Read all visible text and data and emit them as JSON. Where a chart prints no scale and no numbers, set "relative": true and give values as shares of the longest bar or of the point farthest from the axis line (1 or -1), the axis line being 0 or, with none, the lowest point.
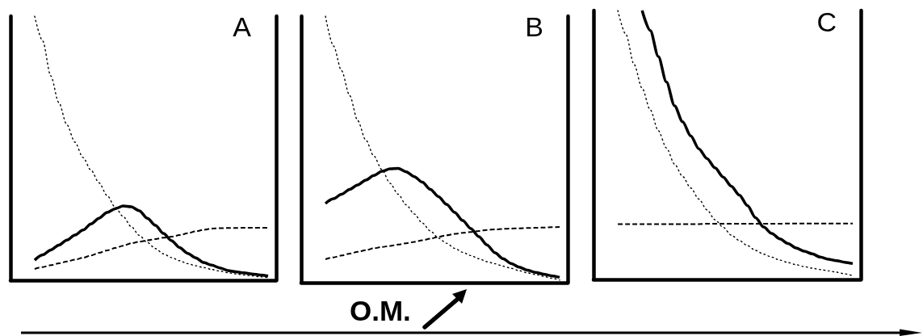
{
  "chart_data": [
    {
      "type": "line",
      "title": "A",
      "relative": true,
      "categories": [
        null,
        null,
        null,
        null,
        null,
        null,
        null,
        null,
        null,
        null,
        null,
        null,
        null,
        null,
        null,
        null,
        null,
        null,
        null,
        null,
        null,
        null,
        null,
        null,
        null,
        null,
        null,
        null,
        null,
        null,
        null,
        null,
        null,
        null
      ],
      "series": [
        {
          "color": "#000000",
          "line_style": "solid",
          "values": [
            null,
            null,
            null,
            0.076,
            0.096,
            0.115,
            0.133,
            0.152,
            0.171,
            0.19,
            0.213,
            0.235,
            0.257,
            0.271,
            0.281,
            0.278,
            0.263,
            0.235,
            0.208,
            0.177,
            0.15,
            0.124,
            0.102,
            0.085,
            0.067,
            0.057,
            0.047,
            0.037,
            0.032,
            0.028,
            0.024,
            0.02,
            0.016,
            null
          ]
        },
        {
          "color": "#000000",
          "line_style": "dashed",
          "values": [
            null,
            null,
            null,
            0.043,
            0.05,
            0.057,
            0.064,
            0.071,
            0.078,
            0.085,
            0.094,
            0.104,
            0.113,
            0.122,
            0.131,
            0.14,
            0.146,
            0.151,
            0.156,
            0.161,
            0.165,
            0.171,
            0.178,
            0.185,
            0.191,
            0.196,
            0.197,
            0.198,
            0.198,
            0.199,
            0.199,
            0.199,
            0.199,
            null
          ]
        },
        {
          "color": "#000000",
          "line_style": "dotted",
          "values": [
            null,
            null,
            null,
            1.0,
            0.906,
            0.774,
            0.673,
            0.589,
            0.523,
            0.465,
            0.417,
            0.369,
            0.321,
            0.277,
            0.241,
            0.203,
            0.17,
            0.143,
            0.12,
            0.1,
            0.086,
            0.074,
            0.063,
            0.055,
            0.048,
            0.041,
            0.035,
            0.029,
            0.024,
            0.02,
            0.017,
            0.013,
            0.01,
            null
          ]
        }
      ]
    },
    {
      "type": "line",
      "title": "B",
      "relative": true,
      "annotations": [
        "O.M."
      ],
      "categories": [
        null,
        null,
        null,
        null,
        null,
        null,
        null,
        null,
        null,
        null,
        null,
        null,
        null,
        null,
        null,
        null,
        null,
        null,
        null,
        null,
        null,
        null,
        null,
        null,
        null,
        null,
        null,
        null,
        null,
        null,
        null,
        null,
        null,
        null
      ],
      "series": [
        {
          "color": "#000000",
          "line_style": "solid",
          "values": [
            null,
            null,
            null,
            0.297,
            0.315,
            0.332,
            0.35,
            0.367,
            0.385,
            0.402,
            0.418,
            0.427,
            0.429,
            0.416,
            0.398,
            0.377,
            0.35,
            0.323,
            0.294,
            0.264,
            0.233,
            0.203,
            0.173,
            0.142,
            0.112,
            0.09,
            0.072,
            0.058,
            0.047,
            0.039,
            0.032,
            0.026,
            0.02,
            null
          ]
        },
        {
          "color": "#000000",
          "line_style": "dashed",
          "values": [
            null,
            null,
            null,
            0.088,
            0.095,
            0.102,
            0.109,
            0.116,
            0.122,
            0.129,
            0.134,
            0.138,
            0.143,
            0.148,
            0.153,
            0.159,
            0.165,
            0.172,
            0.178,
            0.183,
            0.187,
            0.19,
            0.194,
            0.198,
            0.2,
            0.202,
            0.203,
            0.204,
            0.205,
            0.206,
            0.207,
            0.208,
            0.209,
            null
          ]
        },
        {
          "color": "#000000",
          "line_style": "dotted",
          "values": [
            null,
            null,
            null,
            1.0,
            0.888,
            0.795,
            0.702,
            0.608,
            0.535,
            0.475,
            0.424,
            0.373,
            0.332,
            0.292,
            0.258,
            0.224,
            0.194,
            0.167,
            0.148,
            0.129,
            0.114,
            0.102,
            0.09,
            0.079,
            0.071,
            0.062,
            0.054,
            0.045,
            0.037,
            0.031,
            0.024,
            0.017,
            0.01,
            null
          ]
        }
      ]
    },
    {
      "type": "line",
      "title": "C",
      "relative": true,
      "categories": [
        null,
        null,
        null,
        null,
        null,
        null,
        null,
        null,
        null,
        null,
        null,
        null,
        null,
        null,
        null,
        null,
        null,
        null,
        null,
        null,
        null,
        null,
        null,
        null,
        null,
        null,
        null,
        null,
        null,
        null,
        null,
        null,
        null,
        null
      ],
      "series": [
        {
          "color": "#000000",
          "line_style": "solid",
          "values": [
            null,
            null,
            null,
            null,
            null,
            null,
            1.0,
            0.926,
            0.829,
            0.734,
            0.646,
            0.586,
            0.534,
            0.486,
            0.45,
            0.415,
            0.381,
            0.347,
            0.314,
            0.275,
            0.23,
            0.195,
            0.171,
            0.151,
            0.134,
            0.117,
            0.105,
            0.095,
            0.083,
            0.075,
            0.07,
            0.064,
            0.059,
            null
          ]
        },
        {
          "color": "#000000",
          "line_style": "dashed",
          "values": [
            null,
            null,
            null,
            0.206,
            0.206,
            0.206,
            0.206,
            0.206,
            0.206,
            0.206,
            0.206,
            0.206,
            0.206,
            0.206,
            0.207,
            0.207,
            0.207,
            0.207,
            0.207,
            0.207,
            0.207,
            0.207,
            0.207,
            0.207,
            0.208,
            0.208,
            0.208,
            0.208,
            0.208,
            0.208,
            0.208,
            0.208,
            0.208,
            null
          ]
        },
        {
          "color": "#000000",
          "line_style": "dotted",
          "values": [
            null,
            null,
            null,
            1.0,
            0.911,
            0.8,
            0.711,
            0.631,
            0.553,
            0.489,
            0.429,
            0.383,
            0.34,
            0.299,
            0.259,
            0.222,
            0.194,
            0.165,
            0.145,
            0.126,
            0.108,
            0.094,
            0.083,
            0.072,
            0.063,
            0.055,
            0.048,
            0.042,
            0.037,
            0.032,
            0.027,
            0.021,
            0.014,
            null
          ]
        }
      ]
    }
  ]
}
